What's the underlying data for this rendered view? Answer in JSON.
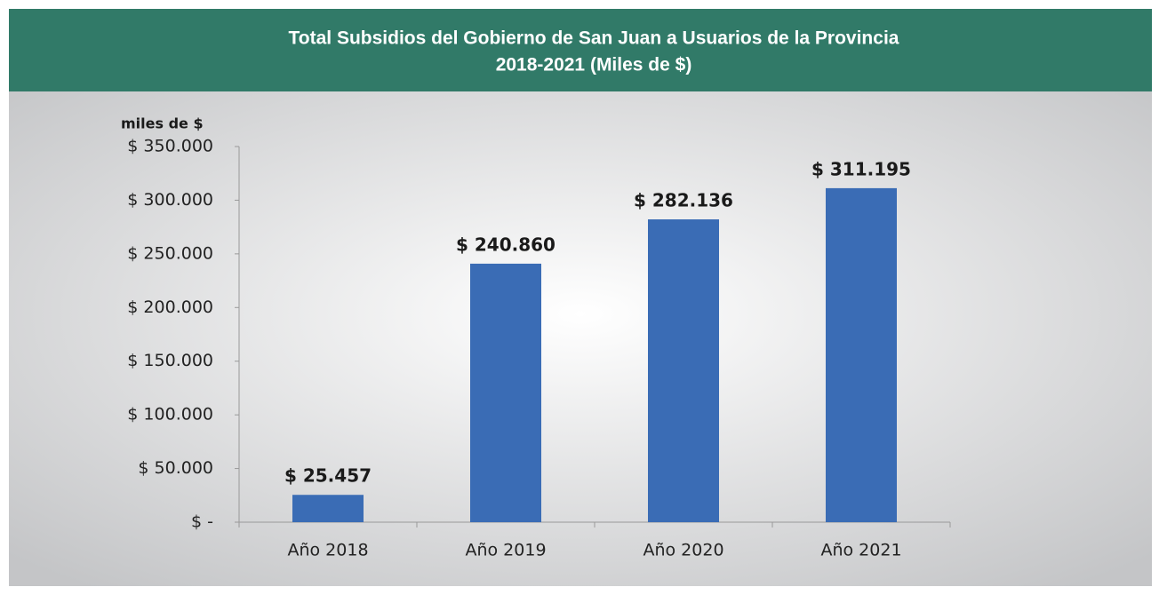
{
  "chart_data": {
    "type": "bar",
    "title": "Total Subsidios del Gobierno de San Juan a Usuarios de la Provincia",
    "subtitle": "2018-2021 (Miles de $)",
    "y_label": "miles de $",
    "categories": [
      "Año 2018",
      "Año 2019",
      "Año 2020",
      "Año 2021"
    ],
    "values": [
      25457,
      240860,
      282136,
      311195
    ],
    "value_labels": [
      "$ 25.457",
      "$ 240.860",
      "$ 282.136",
      "$ 311.195"
    ],
    "color": "#3a6cb5",
    "ylim": [
      0,
      350000
    ],
    "yticks": [
      {
        "value": 0,
        "label": "$ -"
      },
      {
        "value": 50000,
        "label": "$ 50.000"
      },
      {
        "value": 100000,
        "label": "$ 100.000"
      },
      {
        "value": 150000,
        "label": "$ 150.000"
      },
      {
        "value": 200000,
        "label": "$ 200.000"
      },
      {
        "value": 250000,
        "label": "$ 250.000"
      },
      {
        "value": 300000,
        "label": "$ 300.000"
      },
      {
        "value": 350000,
        "label": "$ 350.000"
      }
    ],
    "grid": false
  }
}
